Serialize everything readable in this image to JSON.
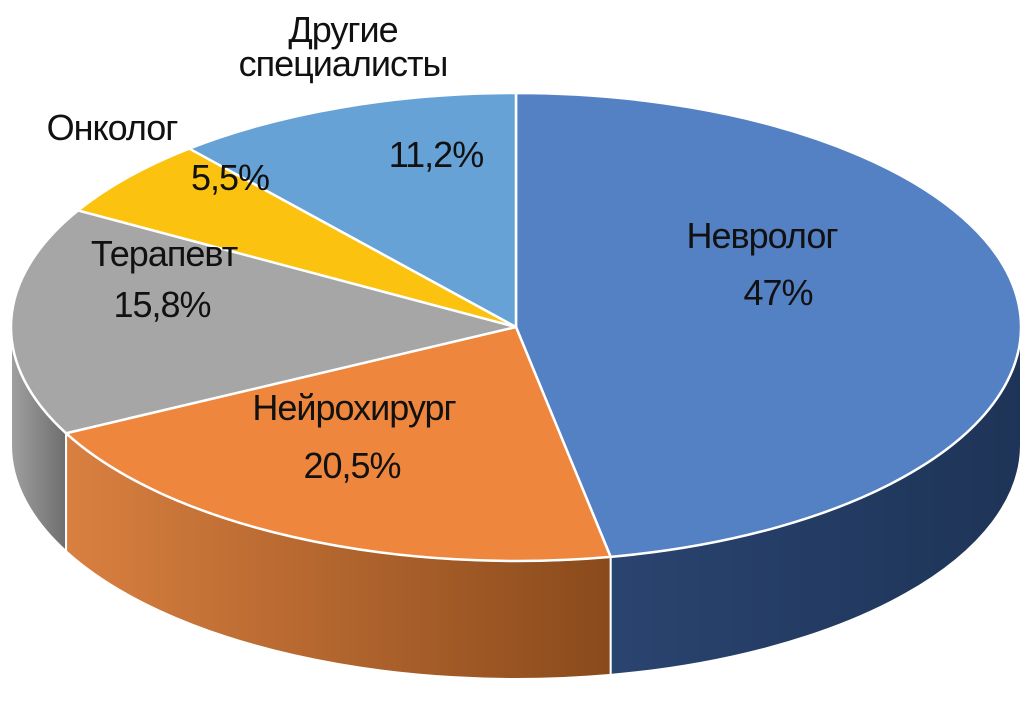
{
  "chart_data": {
    "type": "pie",
    "style": "3d",
    "slices": [
      {
        "label": "Невролог",
        "value": 47,
        "value_label": "47%",
        "color": "#5480C4",
        "side_color": "#2F4A73"
      },
      {
        "label": "Нейрохирург",
        "value": 20.5,
        "value_label": "20,5%",
        "color": "#EE873D",
        "side_color": "#B0622A"
      },
      {
        "label": "Терапевт",
        "value": 15.8,
        "value_label": "15,8%",
        "color": "#A6A6A6",
        "side_color": "#707070"
      },
      {
        "label": "Онколог",
        "value": 5.5,
        "value_label": "5,5%",
        "color": "#FBC20F",
        "side_color": "#B88C08"
      },
      {
        "label_lines": [
          "Другие",
          "специалисты"
        ],
        "value": 11.2,
        "value_label": "11,2%",
        "color": "#66A2D6",
        "side_color": "#3F6F99"
      }
    ]
  }
}
